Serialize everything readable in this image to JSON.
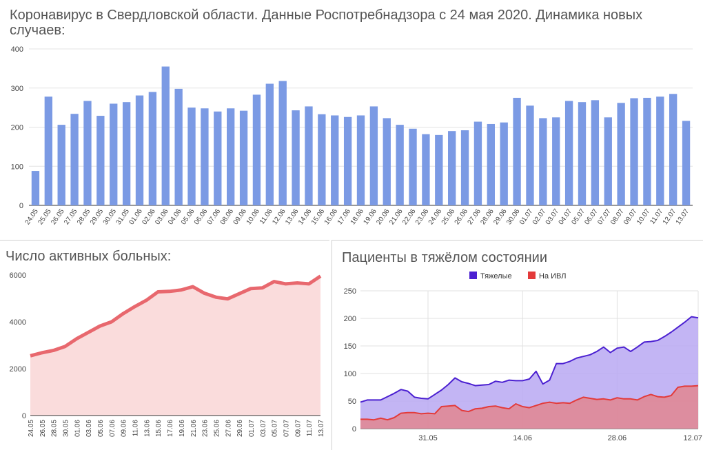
{
  "chart_data": [
    {
      "type": "bar",
      "title": "Коронавирус в Свердловской области. Данные Роспотребнадзора с 24 мая 2020. Динамика новых случаев:",
      "categories": [
        "24.05",
        "25.05",
        "26.05",
        "27.05",
        "28.05",
        "29.05",
        "30.05",
        "31.05",
        "01.06",
        "02.06",
        "03.06",
        "04.06",
        "05.06",
        "06.06",
        "07.06",
        "08.06",
        "09.06",
        "10.06",
        "11.06",
        "12.06",
        "13.06",
        "14.06",
        "15.06",
        "16.06",
        "17.06",
        "18.06",
        "19.06",
        "20.06",
        "21.06",
        "22.06",
        "23.06",
        "24.06",
        "25.06",
        "26.06",
        "27.06",
        "28.06",
        "29.06",
        "30.06",
        "01.07",
        "02.07",
        "03.07",
        "04.07",
        "05.07",
        "06.07",
        "07.07",
        "08.07",
        "09.07",
        "10.07",
        "11.07",
        "12.07",
        "13.07"
      ],
      "values": [
        88,
        278,
        206,
        234,
        267,
        229,
        260,
        264,
        281,
        290,
        355,
        298,
        250,
        248,
        240,
        248,
        242,
        283,
        311,
        318,
        243,
        253,
        233,
        230,
        226,
        230,
        253,
        223,
        206,
        196,
        182,
        180,
        190,
        192,
        214,
        208,
        212,
        275,
        255,
        223,
        225,
        267,
        264,
        269,
        225,
        262,
        274,
        275,
        278,
        285,
        216
      ],
      "ylim": [
        0,
        400
      ],
      "yticks": [
        0,
        100,
        200,
        300,
        400
      ],
      "color": "#7b9ae4",
      "grid": true
    },
    {
      "type": "area",
      "title": "Число активных больных:",
      "categories": [
        "24.05",
        "26.05",
        "28.05",
        "30.05",
        "01.06",
        "03.06",
        "05.06",
        "07.06",
        "09.06",
        "11.06",
        "13.06",
        "15.06",
        "17.06",
        "19.06",
        "21.06",
        "23.06",
        "25.06",
        "27.06",
        "29.06",
        "01.07",
        "03.07",
        "05.07",
        "07.07",
        "09.07",
        "11.07",
        "13.07"
      ],
      "values": [
        2550,
        2680,
        2780,
        2950,
        3280,
        3550,
        3820,
        4000,
        4350,
        4650,
        4920,
        5280,
        5300,
        5360,
        5500,
        5220,
        5050,
        4980,
        5200,
        5420,
        5450,
        5720,
        5620,
        5660,
        5620,
        5950
      ],
      "ylim": [
        0,
        6000
      ],
      "yticks": [
        0,
        2000,
        4000,
        6000
      ],
      "line_color": "#e8686e",
      "fill_color": "#fadcdc",
      "grid": false
    },
    {
      "type": "area",
      "title": "Пациенты в тяжёлом состоянии",
      "xticks": [
        "31.05",
        "14.06",
        "28.06",
        "12.07"
      ],
      "yticks": [
        0,
        50,
        100,
        150,
        200,
        250
      ],
      "ylim": [
        0,
        250
      ],
      "legend_position": "top",
      "series": [
        {
          "name": "Тяжелые",
          "color": "#4b20d1",
          "fill": "#b9a8f2",
          "values": [
            48,
            52,
            52,
            52,
            58,
            64,
            71,
            68,
            57,
            55,
            54,
            62,
            70,
            80,
            92,
            85,
            82,
            78,
            79,
            80,
            86,
            84,
            88,
            87,
            87,
            90,
            104,
            81,
            88,
            118,
            118,
            122,
            128,
            131,
            134,
            140,
            148,
            138,
            146,
            148,
            140,
            148,
            157,
            158,
            160,
            167,
            175,
            184,
            193,
            203,
            201
          ]
        },
        {
          "name": "На ИВЛ",
          "color": "#e33a3a",
          "fill": "#e2868f",
          "values": [
            17,
            17,
            16,
            19,
            16,
            20,
            28,
            29,
            29,
            27,
            28,
            27,
            40,
            41,
            42,
            33,
            31,
            36,
            37,
            40,
            41,
            38,
            36,
            45,
            40,
            38,
            42,
            46,
            48,
            46,
            47,
            46,
            52,
            57,
            55,
            53,
            54,
            52,
            56,
            54,
            54,
            52,
            58,
            62,
            58,
            57,
            60,
            75,
            77,
            77,
            78
          ]
        }
      ]
    }
  ]
}
